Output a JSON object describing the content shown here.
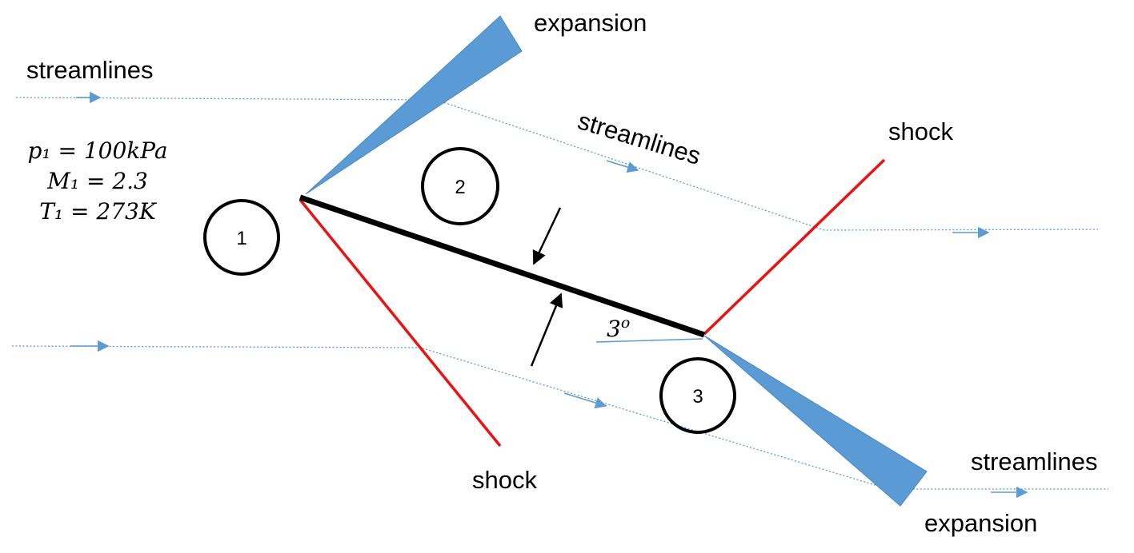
{
  "labels": {
    "expansion_top": "expansion",
    "expansion_bottom": "expansion",
    "streamlines_top_left": "streamlines",
    "streamlines_middle": "streamlines",
    "streamlines_bottom_right": "streamlines",
    "shock_top": "shock",
    "shock_bottom": "shock",
    "angle": "3",
    "angle_superscript": "o"
  },
  "conditions": {
    "pressure": "p₁ = 100kPa",
    "mach": "M₁ = 2.3",
    "temperature": "T₁ = 273K"
  },
  "regions": {
    "r1": "1",
    "r2": "2",
    "r3": "3"
  },
  "colors": {
    "shock": "#ee1111",
    "expansion_fan": "#5b9bd5",
    "streamline": "#5b9bd5",
    "plate": "#000000"
  }
}
